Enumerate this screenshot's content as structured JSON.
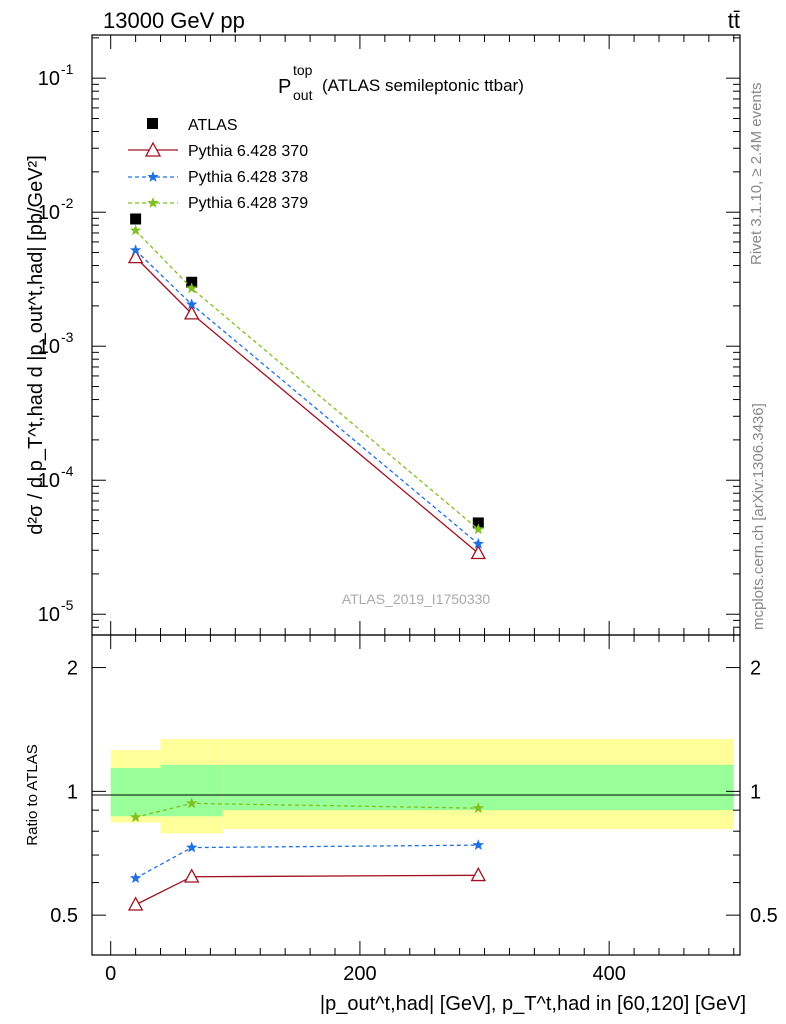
{
  "header": {
    "energy_label": "13000 GeV pp",
    "process_label": "tt̄"
  },
  "side_text": {
    "rivet": "Rivet 3.1.10, ≥ 2.4M events",
    "mcplots": "mcplots.cern.ch [arXiv:1306.3436]"
  },
  "watermark": "ATLAS_2019_I1750330",
  "plot_title": {
    "main": "P",
    "sup": "top",
    "sub": "out",
    "rest": "(ATLAS semileptonic ttbar)"
  },
  "axis_labels": {
    "y_main": "d²σ / d p_T^t,had d |p_out^t,had| [pb/GeV²]",
    "y_ratio": "Ratio to ATLAS",
    "x": "|p_out^t,had| [GeV], p_T^t,had in [60,120] [GeV]"
  },
  "tick_labels": {
    "x": [
      "0",
      "200",
      "400"
    ],
    "y_main": [
      "10^-5",
      "10^-4",
      "10^-3",
      "10^-2",
      "10^-1"
    ],
    "y_ratio": [
      "0.5",
      "1",
      "2"
    ]
  },
  "legend": [
    {
      "label": "ATLAS",
      "color": "#000000",
      "marker": "square",
      "dash": "none"
    },
    {
      "label": "Pythia 6.428 370",
      "color": "#a01020",
      "marker": "triangle-open",
      "dash": "solid"
    },
    {
      "label": "Pythia 6.428 378",
      "color": "#2070e0",
      "marker": "star",
      "dash": "dashed"
    },
    {
      "label": "Pythia 6.428 379",
      "color": "#80c020",
      "marker": "star",
      "dash": "dashed"
    }
  ],
  "chart_data": {
    "type": "scatter",
    "x_scale": "linear",
    "y_scale": "log",
    "xlim": [
      -15,
      505
    ],
    "ylim": [
      7e-06,
      0.21
    ],
    "ratio_ylim": [
      0.4,
      2.4
    ],
    "grid": false,
    "legend_position": "top-left",
    "series": [
      {
        "name": "ATLAS",
        "x": [
          20,
          65,
          295
        ],
        "y": [
          0.0089,
          0.003,
          4.8e-05
        ],
        "ratio": [
          1,
          1,
          1
        ]
      },
      {
        "name": "Pythia 6.428 370",
        "x": [
          20,
          65,
          295
        ],
        "y": [
          0.0046,
          0.00175,
          2.85e-05
        ],
        "ratio": [
          0.53,
          0.62,
          0.625
        ]
      },
      {
        "name": "Pythia 6.428 378",
        "x": [
          20,
          65,
          295
        ],
        "y": [
          0.0052,
          0.00205,
          3.35e-05
        ],
        "ratio": [
          0.615,
          0.73,
          0.74
        ]
      },
      {
        "name": "Pythia 6.428 379",
        "x": [
          20,
          65,
          295
        ],
        "y": [
          0.0073,
          0.0027,
          4.3e-05
        ],
        "ratio": [
          0.865,
          0.935,
          0.91
        ]
      }
    ],
    "uncertainty_bands": [
      {
        "x_range": [
          0,
          40
        ],
        "stat_sys": [
          0.87,
          1.14
        ],
        "total": [
          0.84,
          1.26
        ]
      },
      {
        "x_range": [
          40,
          90
        ],
        "stat_sys": [
          0.87,
          1.16
        ],
        "total": [
          0.79,
          1.34
        ]
      },
      {
        "x_range": [
          90,
          500
        ],
        "stat_sys": [
          0.9,
          1.16
        ],
        "total": [
          0.81,
          1.34
        ]
      }
    ]
  }
}
